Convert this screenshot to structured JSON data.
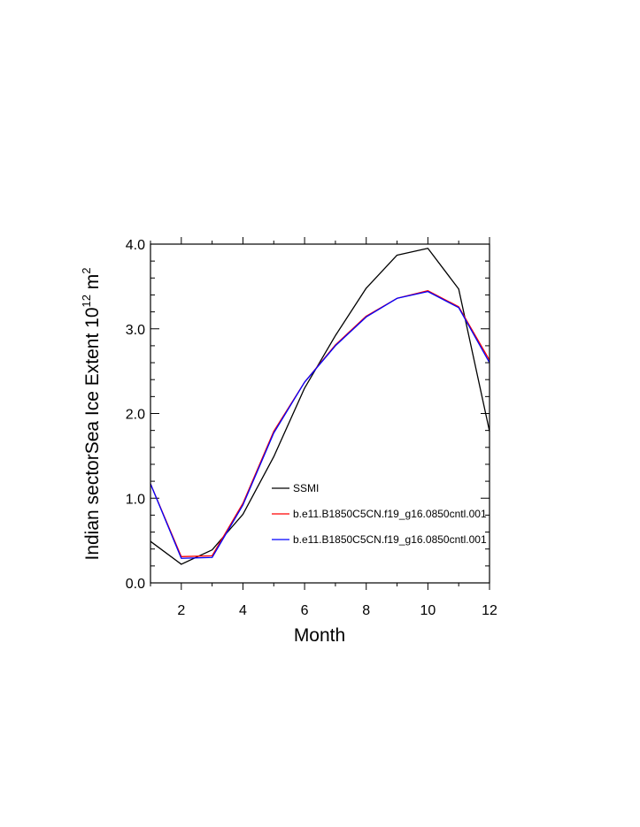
{
  "chart_data": {
    "type": "line",
    "title": "",
    "xlabel": "Month",
    "ylabel": {
      "main": "Indian sectorSea Ice Extent 10",
      "exponent": "12",
      "unit_base": " m",
      "unit_exponent": "2"
    },
    "xlim": [
      1,
      12
    ],
    "ylim": [
      0,
      4
    ],
    "x_ticks": [
      2,
      4,
      6,
      8,
      10,
      12
    ],
    "x_tick_labels": [
      "2",
      "4",
      "6",
      "8",
      "10",
      "12"
    ],
    "y_ticks": [
      0,
      1,
      2,
      3,
      4
    ],
    "y_tick_labels": [
      "0.0",
      "1.0",
      "2.0",
      "3.0",
      "4.0"
    ],
    "grid": false,
    "legend_position": "center-right",
    "x": [
      1,
      2,
      3,
      4,
      5,
      6,
      7,
      8,
      9,
      10,
      11,
      12
    ],
    "series": [
      {
        "name": "SSMI",
        "color": "#000000",
        "values": [
          0.49,
          0.22,
          0.39,
          0.81,
          1.49,
          2.3,
          2.92,
          3.48,
          3.87,
          3.95,
          3.47,
          1.79
        ]
      },
      {
        "name": "b.e11.B1850C5CN.f19_g16.0850cntl.001",
        "color": "#ff0000",
        "values": [
          1.17,
          0.31,
          0.32,
          0.94,
          1.79,
          2.37,
          2.81,
          3.15,
          3.36,
          3.45,
          3.26,
          2.63
        ]
      },
      {
        "name": "b.e11.B1850C5CN.f19_g16.0850cntl.001",
        "color": "#0000ff",
        "values": [
          1.17,
          0.29,
          0.3,
          0.92,
          1.77,
          2.37,
          2.8,
          3.14,
          3.36,
          3.44,
          3.25,
          2.6
        ]
      }
    ]
  }
}
